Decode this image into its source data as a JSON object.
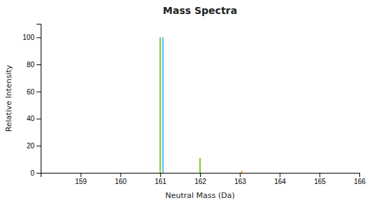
{
  "chart_data": {
    "type": "stem",
    "title": "Mass Spectra",
    "x_label": "Neutral Mass (Da)",
    "y_label": "Relative Intensity",
    "x": [
      161.0,
      161.07,
      162.0,
      163.05
    ],
    "values": [
      100,
      100,
      11,
      1.5
    ],
    "colors": [
      "#7dc832",
      "#4dc8e8",
      "#7dc832",
      "#e8a000"
    ],
    "xlim": [
      158,
      166
    ],
    "ylim": [
      0,
      110
    ],
    "xticks": [
      159,
      160,
      161,
      162,
      163,
      164,
      165,
      166
    ],
    "yticks": [
      0,
      20,
      40,
      60,
      80,
      100
    ],
    "grid": false
  }
}
